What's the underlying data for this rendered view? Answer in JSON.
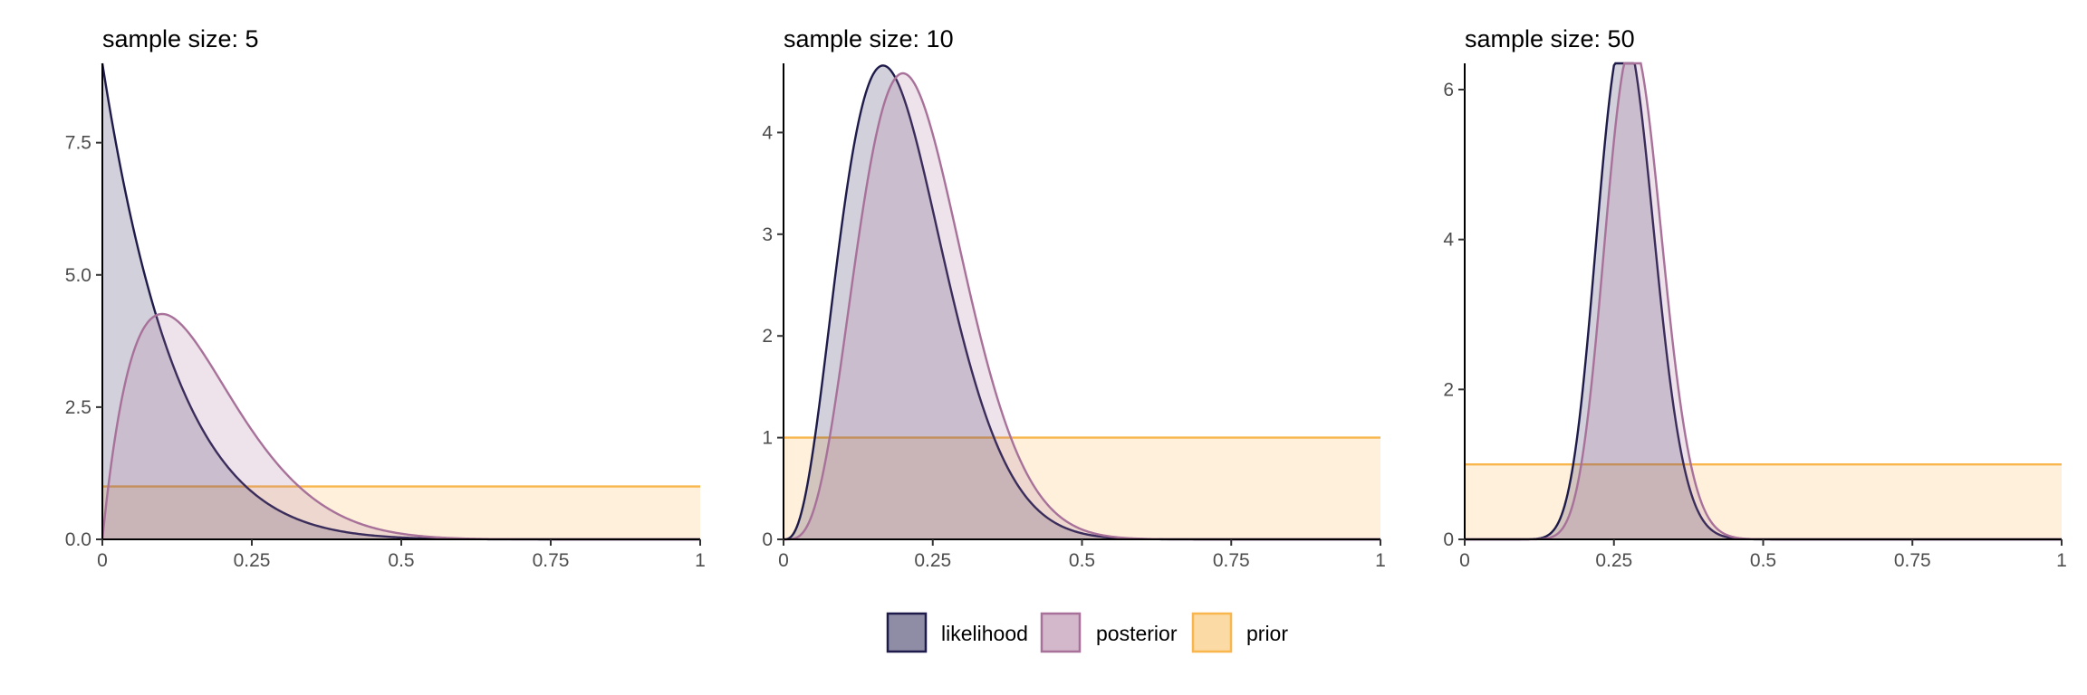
{
  "chart_data": {
    "type": "area",
    "legend": {
      "position": "bottom",
      "entries": [
        {
          "name": "likelihood",
          "fill": "#1e1b4b",
          "fill_opacity": 0.5,
          "line": "#1e1b4b"
        },
        {
          "name": "posterior",
          "fill": "#a8719a",
          "fill_opacity": 0.5,
          "line": "#a8719a"
        },
        {
          "name": "prior",
          "fill": "#f8b64c",
          "fill_opacity": 0.5,
          "line": "#f8b64c"
        }
      ]
    },
    "panels": [
      {
        "title": "sample size: 5",
        "xlim": [
          0,
          1
        ],
        "ylim": [
          0,
          9.0
        ],
        "x_ticks": [
          0,
          0.25,
          0.5,
          0.75,
          1
        ],
        "x_tick_labels": [
          "0",
          "0.25",
          "0.5",
          "0.75",
          "1"
        ],
        "y_ticks": [
          0,
          2.5,
          5,
          7.5
        ],
        "y_tick_labels": [
          "0.0",
          "2.5",
          "5.0",
          "7.5"
        ],
        "series": [
          {
            "name": "likelihood",
            "distribution": "beta",
            "alpha": 1,
            "beta": 9,
            "scale": 1
          },
          {
            "name": "posterior",
            "distribution": "beta",
            "alpha": 2,
            "beta": 10,
            "scale": 1
          },
          {
            "name": "prior",
            "distribution": "uniform",
            "value": 1
          }
        ]
      },
      {
        "title": "sample size: 10",
        "xlim": [
          0,
          1
        ],
        "ylim": [
          0,
          4.68
        ],
        "x_ticks": [
          0,
          0.25,
          0.5,
          0.75,
          1
        ],
        "x_tick_labels": [
          "0",
          "0.25",
          "0.5",
          "0.75",
          "1"
        ],
        "y_ticks": [
          0,
          1,
          2,
          3,
          4
        ],
        "y_tick_labels": [
          "0",
          "1",
          "2",
          "3",
          "4"
        ],
        "series": [
          {
            "name": "likelihood",
            "distribution": "beta",
            "alpha": 4,
            "beta": 16,
            "scale": 1.0
          },
          {
            "name": "posterior",
            "distribution": "beta",
            "alpha": 5,
            "beta": 17,
            "scale": 1.0
          },
          {
            "name": "prior",
            "distribution": "uniform",
            "value": 1
          }
        ]
      },
      {
        "title": "sample size: 50",
        "xlim": [
          0,
          1
        ],
        "ylim": [
          0,
          6.35
        ],
        "x_ticks": [
          0,
          0.25,
          0.5,
          0.75,
          1
        ],
        "x_tick_labels": [
          "0",
          "0.25",
          "0.5",
          "0.75",
          "1"
        ],
        "y_ticks": [
          0,
          2,
          4,
          6
        ],
        "y_tick_labels": [
          "0",
          "2",
          "4",
          "6"
        ],
        "series": [
          {
            "name": "likelihood",
            "distribution": "beta",
            "alpha": 24,
            "beta": 64,
            "scale": 0.804
          },
          {
            "name": "posterior",
            "distribution": "beta",
            "alpha": 26,
            "beta": 65,
            "scale": 0.786
          },
          {
            "name": "prior",
            "distribution": "uniform",
            "value": 1
          }
        ]
      }
    ]
  }
}
